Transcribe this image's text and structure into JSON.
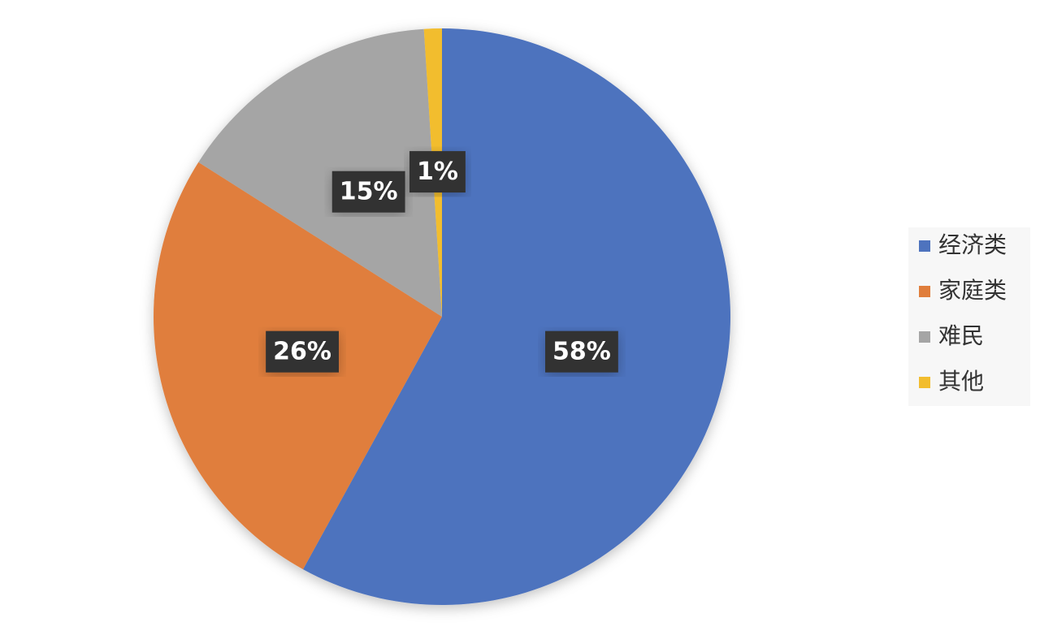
{
  "chart_data": {
    "type": "pie",
    "categories": [
      "经济类",
      "家庭类",
      "难民",
      "其他"
    ],
    "values": [
      58,
      26,
      15,
      1
    ],
    "value_labels": [
      "58%",
      "26%",
      "15%",
      "1%"
    ],
    "colors": [
      "#4e73be",
      "#e07e3c",
      "#a5a5a5",
      "#f2bd2f"
    ],
    "legend": "right"
  }
}
